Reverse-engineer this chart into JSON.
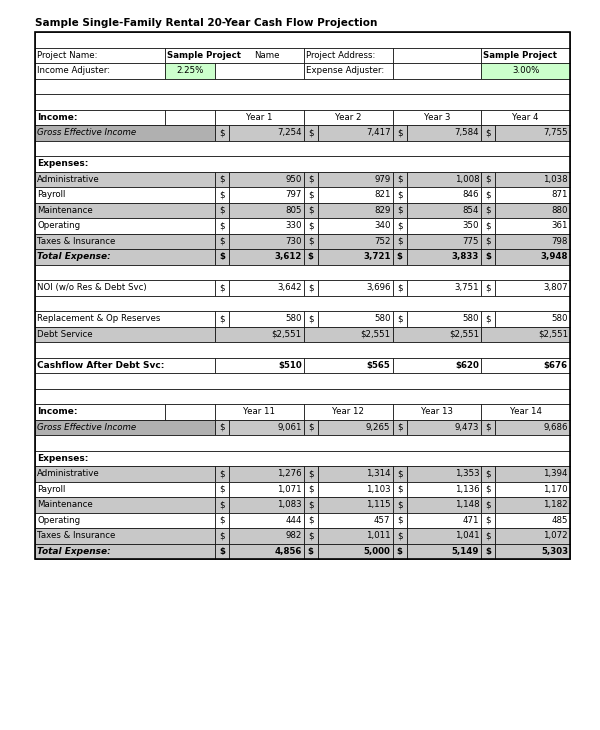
{
  "title": "Sample Single-Family Rental 20-Year Cash Flow Projection",
  "section1_years": [
    "Year 1",
    "Year 2",
    "Year 3",
    "Year 4"
  ],
  "section1_gei": [
    7254,
    7417,
    7584,
    7755
  ],
  "section1_admin": [
    950,
    979,
    1008,
    1038
  ],
  "section1_payroll": [
    797,
    821,
    846,
    871
  ],
  "section1_maintenance": [
    805,
    829,
    854,
    880
  ],
  "section1_operating": [
    330,
    340,
    350,
    361
  ],
  "section1_taxes": [
    730,
    752,
    775,
    798
  ],
  "section1_total": [
    3612,
    3721,
    3833,
    3948
  ],
  "section1_noi": [
    3642,
    3696,
    3751,
    3807
  ],
  "section1_replacement": [
    580,
    580,
    580,
    580
  ],
  "section1_debt": [
    "$2,551",
    "$2,551",
    "$2,551",
    "$2,551"
  ],
  "section1_cashflow": [
    "$510",
    "$565",
    "$620",
    "$676"
  ],
  "section2_years": [
    "Year 11",
    "Year 12",
    "Year 13",
    "Year 14"
  ],
  "section2_gei": [
    9061,
    9265,
    9473,
    9686
  ],
  "section2_admin": [
    1276,
    1314,
    1353,
    1394
  ],
  "section2_payroll": [
    1071,
    1103,
    1136,
    1170
  ],
  "section2_maintenance": [
    1083,
    1115,
    1148,
    1182
  ],
  "section2_operating": [
    444,
    457,
    471,
    485
  ],
  "section2_taxes": [
    982,
    1011,
    1041,
    1072
  ],
  "section2_total": [
    4856,
    5000,
    5149,
    5303
  ],
  "bg_white": "#ffffff",
  "bg_gray": "#b0b0b0",
  "bg_light_gray": "#c8c8c8",
  "bg_green": "#ccffcc",
  "income_adjuster_value": "2.25%",
  "expense_adjuster_value": "3.00%"
}
